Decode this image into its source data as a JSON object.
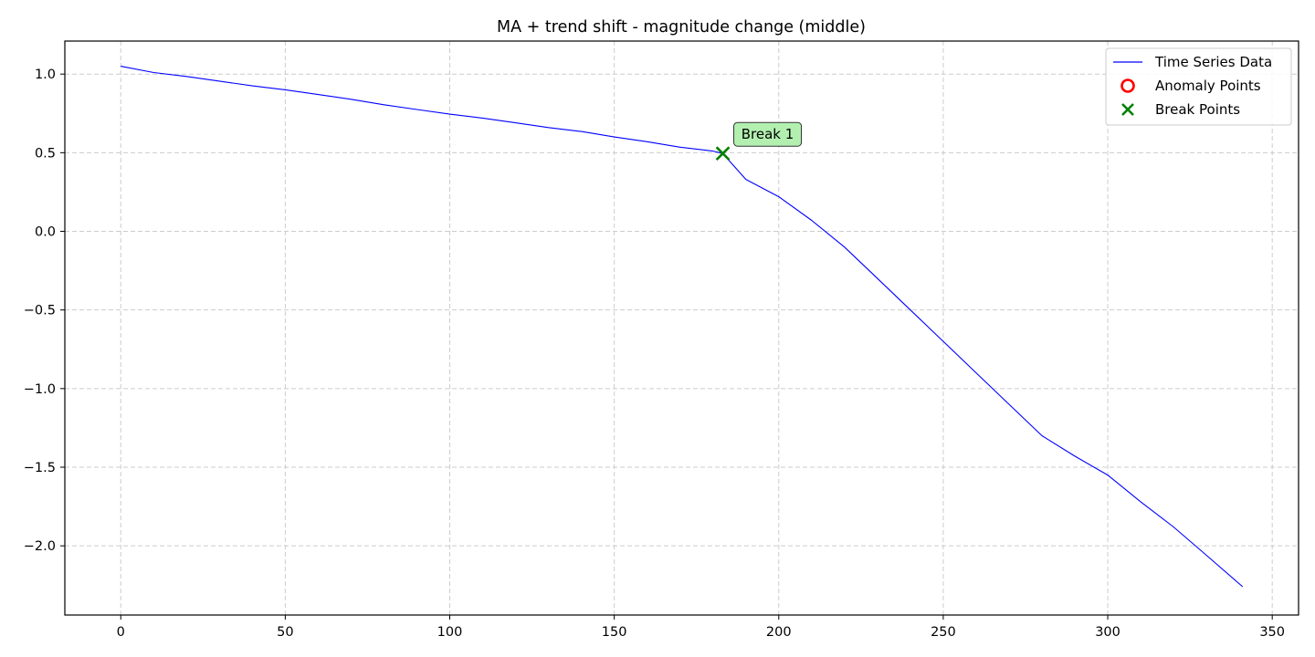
{
  "chart_data": {
    "type": "line",
    "title": "MA + trend shift - magnitude change (middle)",
    "xlabel": "",
    "ylabel": "",
    "xlim": [
      -17,
      358
    ],
    "ylim": [
      -2.44,
      1.21
    ],
    "x_ticks": [
      0,
      50,
      100,
      150,
      200,
      250,
      300,
      350
    ],
    "y_ticks": [
      1.0,
      0.5,
      0.0,
      -0.5,
      -1.0,
      -1.5,
      -2.0
    ],
    "x_tick_labels": [
      "0",
      "50",
      "100",
      "150",
      "200",
      "250",
      "300",
      "350"
    ],
    "y_tick_labels": [
      "1.0",
      "0.5",
      "0.0",
      "−0.5",
      "−1.0",
      "−1.5",
      "−2.0"
    ],
    "grid": true,
    "legend_position": "top-right",
    "legend": [
      "Time Series Data",
      "Anomaly Points",
      "Break Points"
    ],
    "series": [
      {
        "name": "Time Series Data",
        "color": "#0000ff",
        "x": [
          0,
          10,
          20,
          30,
          40,
          50,
          60,
          70,
          80,
          90,
          100,
          110,
          120,
          130,
          140,
          150,
          160,
          170,
          180,
          183,
          190,
          200,
          210,
          220,
          230,
          240,
          250,
          260,
          270,
          280,
          290,
          300,
          310,
          320,
          330,
          341
        ],
        "y": [
          1.05,
          1.01,
          0.985,
          0.955,
          0.925,
          0.9,
          0.87,
          0.84,
          0.805,
          0.775,
          0.745,
          0.72,
          0.69,
          0.66,
          0.635,
          0.6,
          0.57,
          0.535,
          0.51,
          0.495,
          0.33,
          0.22,
          0.07,
          -0.1,
          -0.3,
          -0.5,
          -0.7,
          -0.9,
          -1.1,
          -1.3,
          -1.43,
          -1.55,
          -1.72,
          -1.88,
          -2.06,
          -2.26
        ]
      },
      {
        "name": "Anomaly Points",
        "color": "#ff0000",
        "x": [],
        "y": []
      },
      {
        "name": "Break Points",
        "color": "#008000",
        "x": [
          183
        ],
        "y": [
          0.495
        ]
      }
    ],
    "annotations": [
      {
        "text": "Break 1",
        "x": 183,
        "y": 0.495
      }
    ]
  }
}
